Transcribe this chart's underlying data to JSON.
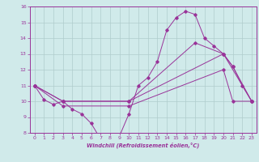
{
  "title": "",
  "xlabel": "Windchill (Refroidissement éolien,°C)",
  "xlim": [
    -0.5,
    23.5
  ],
  "ylim": [
    8,
    16
  ],
  "yticks": [
    8,
    9,
    10,
    11,
    12,
    13,
    14,
    15,
    16
  ],
  "xticks": [
    0,
    1,
    2,
    3,
    4,
    5,
    6,
    7,
    8,
    9,
    10,
    11,
    12,
    13,
    14,
    15,
    16,
    17,
    18,
    19,
    20,
    21,
    22,
    23
  ],
  "bg_color": "#d0eaea",
  "line_color": "#993399",
  "grid_color": "#b0cccc",
  "series": [
    {
      "x": [
        0,
        1,
        2,
        3,
        4,
        5,
        6,
        7,
        8,
        9,
        10,
        11,
        12,
        13,
        14,
        15,
        16,
        17,
        18,
        19,
        20,
        21,
        22,
        23
      ],
      "y": [
        11,
        10.1,
        9.8,
        10,
        9.5,
        9.2,
        8.6,
        7.6,
        7.6,
        7.8,
        9.2,
        11,
        11.5,
        12.5,
        14.5,
        15.3,
        15.7,
        15.5,
        14.0,
        13.5,
        13.0,
        12.2,
        11.0,
        10
      ]
    },
    {
      "x": [
        0,
        3,
        10,
        17,
        20,
        21,
        23
      ],
      "y": [
        11,
        10,
        10,
        13.7,
        13.0,
        12.2,
        10
      ]
    },
    {
      "x": [
        0,
        3,
        10,
        20,
        23
      ],
      "y": [
        11,
        10,
        10,
        13.0,
        10
      ]
    },
    {
      "x": [
        0,
        3,
        10,
        20,
        21,
        23
      ],
      "y": [
        11,
        9.7,
        9.7,
        12.0,
        10.0,
        10
      ]
    }
  ]
}
